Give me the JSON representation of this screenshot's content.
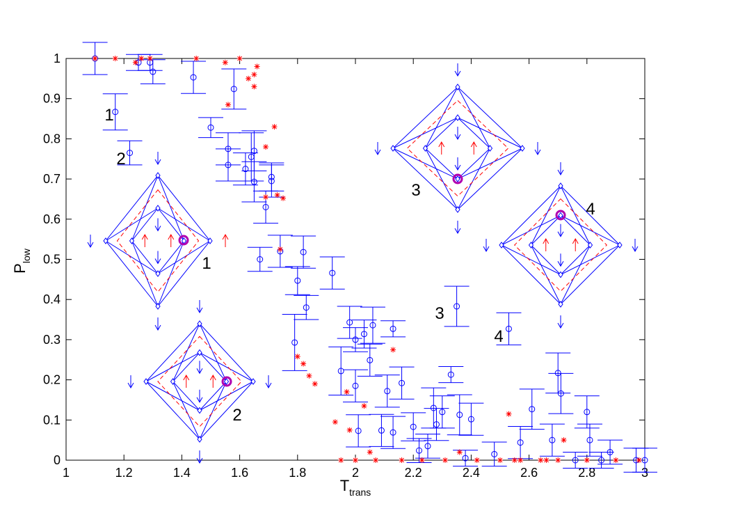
{
  "chart_data": {
    "type": "scatter",
    "xlabel": {
      "text": "T",
      "subscript": "trans"
    },
    "ylabel": {
      "text": "P",
      "subscript": "low"
    },
    "xlim": [
      1,
      3
    ],
    "ylim": [
      0,
      1
    ],
    "xticks": [
      1,
      1.2,
      1.4,
      1.6,
      1.8,
      2,
      2.2,
      2.4,
      2.6,
      2.8,
      3
    ],
    "yticks": [
      0,
      0.1,
      0.2,
      0.3,
      0.4,
      0.5,
      0.6,
      0.7,
      0.8,
      0.9,
      1
    ],
    "series": [
      {
        "color": "#0000ff",
        "marker": "o",
        "x": [
          1.1,
          1.17,
          1.22,
          1.25,
          1.29,
          1.3,
          1.44,
          1.5,
          1.58,
          1.56,
          1.56,
          1.62,
          1.64,
          1.65,
          1.65,
          1.69,
          1.71,
          1.71,
          1.67,
          1.74,
          1.8,
          1.82,
          1.83,
          1.92,
          1.79,
          1.95,
          1.98,
          2.0,
          2.0,
          2.01,
          2.03,
          2.05,
          2.06,
          2.09,
          2.11,
          2.13,
          2.13,
          2.16,
          2.2,
          2.22,
          2.25,
          2.27,
          2.28,
          2.3,
          2.33,
          2.35,
          2.36,
          2.38,
          2.4,
          2.48,
          2.53,
          2.57,
          2.61,
          2.7,
          2.71,
          2.68,
          2.8,
          2.81,
          2.88,
          2.97,
          3.0,
          2.85,
          2.76
        ],
        "values": [
          1.0,
          0.867,
          0.765,
          0.99,
          0.99,
          0.967,
          0.953,
          0.828,
          0.924,
          0.775,
          0.735,
          0.725,
          0.755,
          0.77,
          0.693,
          0.63,
          0.705,
          0.695,
          0.5,
          0.52,
          0.447,
          0.518,
          0.38,
          0.466,
          0.293,
          0.222,
          0.343,
          0.185,
          0.3,
          0.073,
          0.314,
          0.249,
          0.336,
          0.074,
          0.172,
          0.069,
          0.327,
          0.192,
          0.083,
          0.024,
          0.035,
          0.13,
          0.089,
          0.12,
          0.213,
          0.383,
          0.113,
          0.005,
          0.102,
          0.015,
          0.327,
          0.044,
          0.127,
          0.217,
          0.166,
          0.05,
          0.12,
          0.05,
          0.02,
          0.0,
          0.0,
          0.0,
          0.0
        ],
        "errors": [
          0.04,
          0.045,
          0.03,
          0.02,
          0.02,
          0.03,
          0.04,
          0.025,
          0.05,
          0.04,
          0.04,
          0.04,
          0.06,
          0.05,
          0.05,
          0.04,
          0.035,
          0.04,
          0.03,
          0.04,
          0.035,
          0.04,
          0.03,
          0.04,
          0.07,
          0.06,
          0.04,
          0.04,
          0.03,
          0.04,
          0.035,
          0.04,
          0.045,
          0.04,
          0.04,
          0.04,
          0.02,
          0.04,
          0.035,
          0.03,
          0.03,
          0.05,
          0.04,
          0.04,
          0.02,
          0.05,
          0.05,
          0.02,
          0.04,
          0.03,
          0.04,
          0.04,
          0.05,
          0.05,
          0.05,
          0.04,
          0.04,
          0.04,
          0.03,
          0.03,
          0.03,
          0.02,
          0.02
        ]
      },
      {
        "color": "#ff0000",
        "marker": "*",
        "x": [
          1.1,
          1.17,
          1.24,
          1.26,
          1.29,
          1.45,
          1.55,
          1.6,
          1.63,
          1.65,
          1.66,
          1.65,
          1.56,
          1.72,
          1.69,
          1.69,
          1.73,
          1.75,
          1.74,
          1.8,
          1.82,
          1.84,
          1.86,
          1.93,
          1.95,
          1.97,
          1.98,
          2.03,
          2.0,
          2.05,
          2.07,
          2.13,
          2.16,
          2.23,
          2.31,
          2.36,
          2.42,
          2.5,
          2.53,
          2.55,
          2.66,
          2.72,
          2.7,
          2.8,
          2.9,
          2.98,
          2.64,
          2.57
        ],
        "values": [
          1.0,
          1.0,
          0.99,
          1.0,
          1.0,
          1.0,
          0.99,
          1.0,
          0.95,
          0.96,
          0.98,
          0.93,
          0.885,
          0.83,
          0.78,
          0.655,
          0.66,
          0.652,
          0.525,
          0.258,
          0.24,
          0.21,
          0.19,
          0.095,
          0.0,
          0.17,
          0.075,
          0.135,
          0.0,
          0.02,
          0.0,
          0.275,
          0.0,
          0.0,
          0.0,
          0.02,
          0.0,
          0.0,
          0.115,
          0.0,
          0.0,
          0.05,
          0.0,
          0.0,
          0.0,
          0.0,
          0.0,
          0.0
        ]
      }
    ],
    "annotations": [
      "1",
      "2",
      "3",
      "4"
    ],
    "inset_labels": [
      "1",
      "2",
      "3",
      "4"
    ]
  }
}
